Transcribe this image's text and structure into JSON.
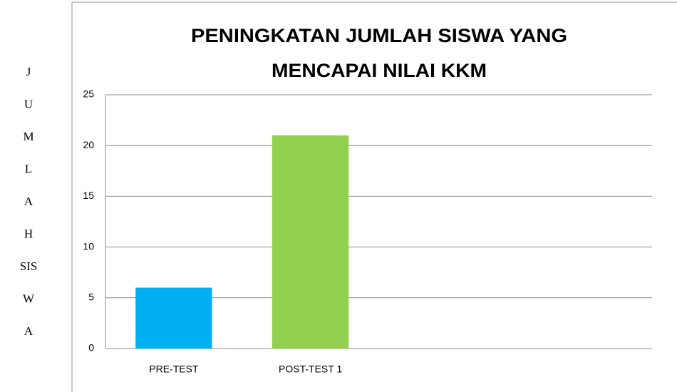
{
  "chart_data": {
    "type": "bar",
    "title": [
      "PENINGKATAN JUMLAH SISWA YANG",
      "MENCAPAI NILAI KKM"
    ],
    "y_label": [
      "J",
      "U",
      "M",
      "L",
      "A",
      "H",
      "SIS",
      "W",
      "A"
    ],
    "categories": [
      "PRE-TEST",
      "POST-TEST 1",
      null,
      null
    ],
    "values": [
      6,
      21,
      null,
      null
    ],
    "colors": [
      "#00b0f0",
      "#92d050",
      null,
      null
    ],
    "ylim": [
      0,
      25
    ],
    "yticks": [
      0,
      5,
      10,
      15,
      20,
      25
    ],
    "grid": true
  }
}
